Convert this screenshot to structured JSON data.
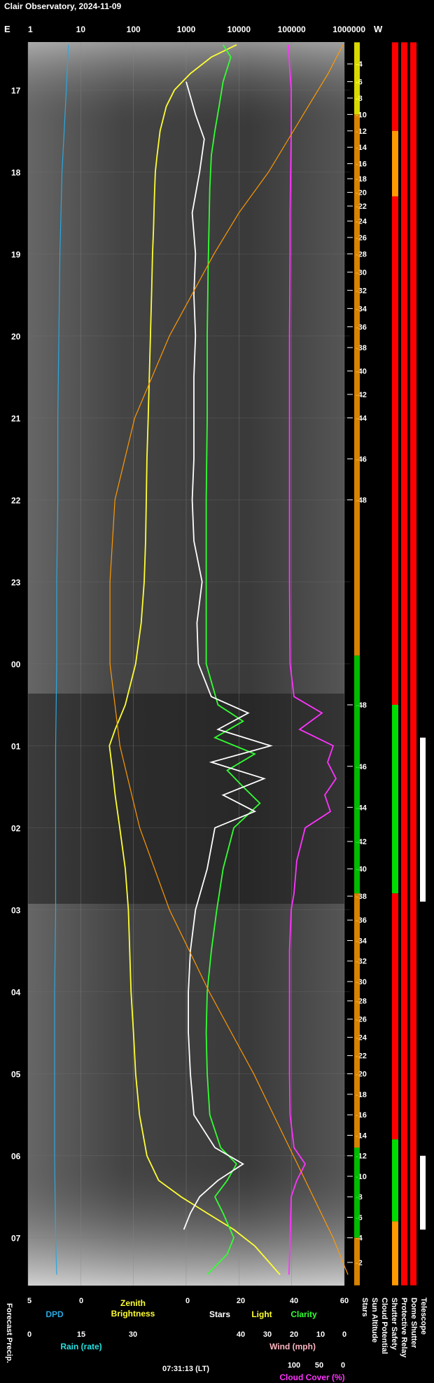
{
  "title": "Clair Observatory, 2024-11-09",
  "chart_data": {
    "type": "line",
    "title": "Clair Observatory, 2024-11-09",
    "orientation": "vertical-time",
    "top_axis": {
      "left_label": "E",
      "right_label": "W",
      "scale": "log",
      "ticks": [
        "1",
        "10",
        "100",
        "1000",
        "10000",
        "100000",
        "1000000"
      ]
    },
    "time_ticks": [
      "17",
      "18",
      "19",
      "20",
      "21",
      "22",
      "23",
      "00",
      "01",
      "02",
      "03",
      "04",
      "05",
      "06",
      "07"
    ],
    "time_range": [
      "16:25",
      "07:35"
    ],
    "sun_altitude_ticks_upper": [
      "-4",
      "-6",
      "-8",
      "-10",
      "-12",
      "-14",
      "-16",
      "-18",
      "-20",
      "-22",
      "-24",
      "-26",
      "-28",
      "-30",
      "-32",
      "-34",
      "-36",
      "-38",
      "-40",
      "-42",
      "-44",
      "-46",
      "-48"
    ],
    "sun_altitude_ticks_lower": [
      "-48",
      "-46",
      "-44",
      "-42",
      "-40",
      "-38",
      "-36",
      "-34",
      "-32",
      "-30",
      "-28",
      "-26",
      "-24",
      "-22",
      "-20",
      "-18",
      "-16",
      "-14",
      "-12",
      "-10",
      "-8",
      "-6",
      "-4",
      "-2"
    ],
    "bottom_axes": [
      {
        "label": "DPD",
        "color": "#29a8e0",
        "ticks": [
          "5",
          "0"
        ]
      },
      {
        "label": "Zenith Brightness",
        "color": "#ffff33",
        "ticks": []
      },
      {
        "label": "Stars",
        "color": "#ffffff",
        "ticks": [
          "0"
        ]
      },
      {
        "label": "Light",
        "color": "#ffff33",
        "ticks": [
          "20"
        ]
      },
      {
        "label": "Clarity",
        "color": "#33ff33",
        "ticks": [
          "40",
          "60"
        ]
      },
      {
        "label": "Rain (rate)",
        "color": "#29e0e0",
        "ticks": [
          "0",
          "15",
          "30"
        ]
      },
      {
        "label": "Wind (mph)",
        "color": "#ffb6c1",
        "ticks": [
          "40",
          "30",
          "20",
          "10",
          "0"
        ]
      },
      {
        "label": "Cloud Cover (%)",
        "color": "#ff33ff",
        "ticks": [
          "100",
          "50",
          "0"
        ]
      }
    ],
    "timestamp": "07:31:13 (LT)",
    "left_vertical_label": "Forecast Precip.",
    "status_columns": [
      "Stars",
      "Sun Altitude",
      "Cloud Potential",
      "Shutter Safety",
      "Protective Relay",
      "Dome Shutter",
      "Telescope"
    ],
    "status_colors": {
      "bad": "#ff0000",
      "caution": "#ff9900",
      "marginal": "#ffff00",
      "good": "#00dd00"
    },
    "series": [
      {
        "name": "Zenith Brightness",
        "color": "#ffff33",
        "values": [
          [
            16.45,
            9000
          ],
          [
            16.6,
            3000
          ],
          [
            16.8,
            1200
          ],
          [
            17.0,
            600
          ],
          [
            17.2,
            420
          ],
          [
            17.5,
            320
          ],
          [
            17.8,
            280
          ],
          [
            18.0,
            260
          ],
          [
            18.3,
            250
          ],
          [
            18.7,
            240
          ],
          [
            19.0,
            230
          ],
          [
            19.5,
            220
          ],
          [
            20.0,
            210
          ],
          [
            20.5,
            200
          ],
          [
            21.0,
            190
          ],
          [
            21.5,
            180
          ],
          [
            22.0,
            175
          ],
          [
            22.5,
            170
          ],
          [
            23.0,
            160
          ],
          [
            23.5,
            140
          ],
          [
            24.0,
            110
          ],
          [
            24.5,
            70
          ],
          [
            24.8,
            45
          ],
          [
            25.0,
            35
          ],
          [
            25.3,
            40
          ],
          [
            25.6,
            45
          ],
          [
            26.0,
            55
          ],
          [
            26.5,
            70
          ],
          [
            27.0,
            80
          ],
          [
            27.5,
            85
          ],
          [
            28.0,
            90
          ],
          [
            28.5,
            100
          ],
          [
            29.0,
            110
          ],
          [
            29.5,
            130
          ],
          [
            30.0,
            180
          ],
          [
            30.3,
            300
          ],
          [
            30.5,
            800
          ],
          [
            30.7,
            2500
          ],
          [
            30.9,
            8000
          ],
          [
            31.1,
            20000
          ],
          [
            31.45,
            60000
          ]
        ]
      },
      {
        "name": "Clarity",
        "color": "#33ff33",
        "values": [
          [
            16.45,
            5000
          ],
          [
            16.6,
            7000
          ],
          [
            16.9,
            5000
          ],
          [
            17.2,
            4200
          ],
          [
            17.5,
            3500
          ],
          [
            17.8,
            3000
          ],
          [
            18.2,
            2800
          ],
          [
            18.7,
            2700
          ],
          [
            19.2,
            2600
          ],
          [
            20.0,
            2500
          ],
          [
            21.0,
            2500
          ],
          [
            22.0,
            2400
          ],
          [
            23.0,
            2400
          ],
          [
            24.0,
            2400
          ],
          [
            24.5,
            4000
          ],
          [
            24.7,
            12000
          ],
          [
            24.9,
            3500
          ],
          [
            25.1,
            20000
          ],
          [
            25.3,
            6000
          ],
          [
            25.5,
            12000
          ],
          [
            25.7,
            25000
          ],
          [
            26.0,
            8000
          ],
          [
            26.5,
            5000
          ],
          [
            27.0,
            3800
          ],
          [
            27.5,
            3000
          ],
          [
            28.0,
            2500
          ],
          [
            28.5,
            2400
          ],
          [
            29.0,
            2500
          ],
          [
            29.5,
            2800
          ],
          [
            29.9,
            4500
          ],
          [
            30.1,
            9000
          ],
          [
            30.3,
            6000
          ],
          [
            30.5,
            3500
          ],
          [
            30.7,
            5000
          ],
          [
            31.0,
            8000
          ],
          [
            31.2,
            6000
          ],
          [
            31.45,
            2500
          ]
        ]
      },
      {
        "name": "Stars",
        "color": "#ffffff",
        "values": [
          [
            16.9,
            1000
          ],
          [
            17.3,
            1500
          ],
          [
            17.6,
            2200
          ],
          [
            18.0,
            1800
          ],
          [
            18.5,
            1300
          ],
          [
            19.0,
            1500
          ],
          [
            19.5,
            1400
          ],
          [
            20.0,
            1500
          ],
          [
            20.5,
            1400
          ],
          [
            21.0,
            1400
          ],
          [
            21.5,
            1400
          ],
          [
            22.0,
            1300
          ],
          [
            22.5,
            1400
          ],
          [
            23.0,
            2000
          ],
          [
            23.5,
            1600
          ],
          [
            24.0,
            1700
          ],
          [
            24.4,
            3000
          ],
          [
            24.6,
            15000
          ],
          [
            24.8,
            4000
          ],
          [
            25.0,
            40000
          ],
          [
            25.2,
            3000
          ],
          [
            25.4,
            30000
          ],
          [
            25.6,
            5000
          ],
          [
            25.8,
            20000
          ],
          [
            26.0,
            3500
          ],
          [
            26.5,
            2500
          ],
          [
            27.0,
            1500
          ],
          [
            27.5,
            1200
          ],
          [
            28.0,
            1100
          ],
          [
            28.5,
            1100
          ],
          [
            29.0,
            1200
          ],
          [
            29.5,
            1400
          ],
          [
            29.9,
            3500
          ],
          [
            30.1,
            12000
          ],
          [
            30.3,
            4000
          ],
          [
            30.5,
            1800
          ],
          [
            30.7,
            1200
          ],
          [
            30.9,
            900
          ]
        ]
      },
      {
        "name": "Cloud Cover (%)",
        "color": "#ff33ff",
        "values": [
          [
            16.45,
            100
          ],
          [
            16.7,
            98
          ],
          [
            17.0,
            95
          ],
          [
            17.5,
            95
          ],
          [
            18.0,
            96
          ],
          [
            18.5,
            97
          ],
          [
            19.0,
            97
          ],
          [
            20.0,
            98
          ],
          [
            21.0,
            98
          ],
          [
            22.0,
            98
          ],
          [
            23.0,
            98
          ],
          [
            24.0,
            97
          ],
          [
            24.4,
            90
          ],
          [
            24.6,
            40
          ],
          [
            24.8,
            80
          ],
          [
            25.0,
            20
          ],
          [
            25.2,
            30
          ],
          [
            25.4,
            15
          ],
          [
            25.6,
            35
          ],
          [
            25.8,
            25
          ],
          [
            26.0,
            70
          ],
          [
            26.4,
            85
          ],
          [
            26.8,
            90
          ],
          [
            27.0,
            95
          ],
          [
            27.5,
            98
          ],
          [
            28.0,
            98
          ],
          [
            29.0,
            98
          ],
          [
            29.5,
            97
          ],
          [
            29.9,
            90
          ],
          [
            30.1,
            70
          ],
          [
            30.3,
            85
          ],
          [
            30.5,
            95
          ],
          [
            31.0,
            97
          ],
          [
            31.45,
            99
          ]
        ]
      },
      {
        "name": "Sun Altitude",
        "color": "#ff9900",
        "values": [
          [
            16.45,
            -2
          ],
          [
            16.8,
            -5
          ],
          [
            17.2,
            -9
          ],
          [
            17.6,
            -13
          ],
          [
            18.0,
            -17
          ],
          [
            18.5,
            -23
          ],
          [
            19.0,
            -28
          ],
          [
            20.0,
            -37
          ],
          [
            21.0,
            -44
          ],
          [
            22.0,
            -48
          ],
          [
            23.0,
            -49
          ],
          [
            24.0,
            -49
          ],
          [
            25.0,
            -47
          ],
          [
            26.0,
            -43
          ],
          [
            27.0,
            -37
          ],
          [
            28.0,
            -29
          ],
          [
            29.0,
            -20
          ],
          [
            29.5,
            -16
          ],
          [
            30.0,
            -12
          ],
          [
            30.5,
            -8
          ],
          [
            31.0,
            -4
          ],
          [
            31.45,
            -1
          ]
        ]
      },
      {
        "name": "DPD",
        "color": "#29a8e0",
        "values": [
          [
            16.45,
            1.2
          ],
          [
            17.0,
            1.4
          ],
          [
            17.5,
            1.6
          ],
          [
            18.0,
            1.8
          ],
          [
            18.5,
            1.9
          ],
          [
            19.0,
            2.0
          ],
          [
            20.0,
            2.1
          ],
          [
            21.0,
            2.2
          ],
          [
            22.0,
            2.2
          ],
          [
            23.0,
            2.3
          ],
          [
            24.0,
            2.3
          ],
          [
            25.0,
            2.4
          ],
          [
            26.0,
            2.4
          ],
          [
            27.0,
            2.4
          ],
          [
            28.0,
            2.5
          ],
          [
            29.0,
            2.5
          ],
          [
            30.0,
            2.5
          ],
          [
            31.0,
            2.4
          ],
          [
            31.45,
            2.3
          ]
        ]
      }
    ]
  }
}
